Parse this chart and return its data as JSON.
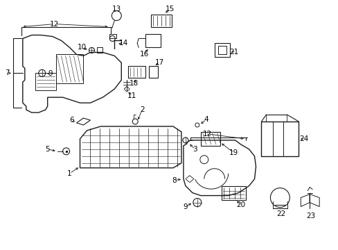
{
  "background_color": "#ffffff",
  "line_color": "#1a1a1a",
  "text_color": "#000000",
  "figsize": [
    4.89,
    3.6
  ],
  "dpi": 100
}
